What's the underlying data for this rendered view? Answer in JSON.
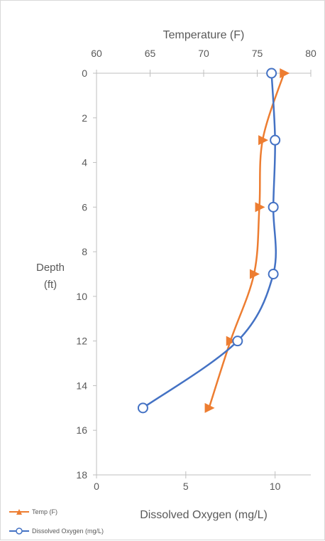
{
  "chart_data": {
    "type": "line",
    "xlabel_top": "Temperature (F)",
    "xlabel_bottom": "Dissolved Oxygen (mg/L)",
    "ylabel_lines": [
      "Depth",
      "(ft)"
    ],
    "top_axis": {
      "range": [
        60,
        80
      ],
      "ticks": [
        "60",
        "65",
        "70",
        "75",
        "80"
      ]
    },
    "bottom_axis": {
      "range": [
        0,
        12
      ],
      "ticks": [
        "0",
        "5",
        "10"
      ]
    },
    "y_axis": {
      "range": [
        0,
        18
      ],
      "reversed": true,
      "ticks": [
        "0",
        "2",
        "4",
        "6",
        "8",
        "10",
        "12",
        "14",
        "16",
        "18"
      ]
    },
    "series": [
      {
        "name": "Temp (F)",
        "axis": "top",
        "color": "#ed7d31",
        "marker": "triangle",
        "points": [
          [
            77.5,
            0
          ],
          [
            75.5,
            3
          ],
          [
            75.2,
            6
          ],
          [
            74.7,
            9
          ],
          [
            72.5,
            12
          ],
          [
            70.5,
            15
          ]
        ]
      },
      {
        "name": "Dissolved Oxygen (mg/L)",
        "axis": "bottom",
        "color": "#4472c4",
        "marker": "circle",
        "points": [
          [
            9.8,
            0
          ],
          [
            10.0,
            3
          ],
          [
            9.9,
            6
          ],
          [
            9.9,
            9
          ],
          [
            7.9,
            12
          ],
          [
            2.6,
            15
          ]
        ]
      }
    ]
  }
}
